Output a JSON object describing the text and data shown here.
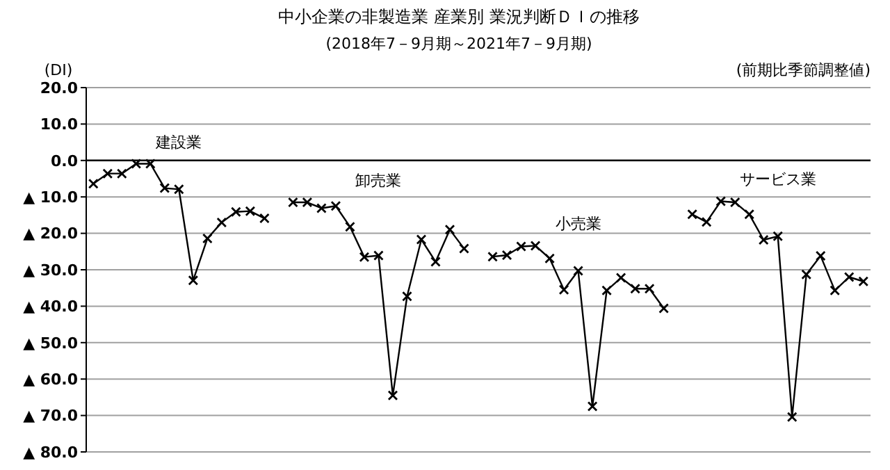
{
  "chart_data": {
    "type": "line",
    "title": "中小企業の非製造業 産業別 業況判断ＤＩの推移",
    "subtitle": "(2018年7－9月期～2021年7－9月期)",
    "ylabel": "(DI)",
    "annotations": [
      "(前期比季節調整値)"
    ],
    "categories": [
      null,
      null,
      null,
      null,
      null,
      null,
      null,
      null,
      null,
      null,
      null,
      null,
      null,
      null,
      null,
      null,
      null,
      null,
      null,
      null,
      null,
      null,
      null,
      null,
      null,
      null,
      null,
      null,
      null,
      null,
      null,
      null,
      null,
      null,
      null,
      null,
      null,
      null,
      null,
      null,
      null,
      null,
      null,
      null,
      null,
      null,
      null,
      null,
      null,
      null,
      null,
      null,
      null,
      null,
      null
    ],
    "series": [
      {
        "name": "建設業",
        "color": "#000000",
        "values": [
          -6.4,
          -3.6,
          -3.6,
          -0.9,
          -0.9,
          -7.6,
          -7.9,
          -32.9,
          -21.4,
          -17,
          -14.1,
          -13.9,
          -15.9,
          null,
          null,
          null,
          null,
          null,
          null,
          null,
          null,
          null,
          null,
          null,
          null,
          null,
          null,
          null,
          null,
          null,
          null,
          null,
          null,
          null,
          null,
          null,
          null,
          null,
          null,
          null,
          null,
          null,
          null,
          null,
          null,
          null,
          null,
          null,
          null,
          null,
          null,
          null,
          null,
          null,
          null
        ]
      },
      {
        "name": "卸売業",
        "color": "#000000",
        "values": [
          null,
          null,
          null,
          null,
          null,
          null,
          null,
          null,
          null,
          null,
          null,
          null,
          null,
          null,
          -11.5,
          -11.5,
          -13.1,
          -12.5,
          -18.2,
          -26.5,
          -26.1,
          -64.5,
          -37.3,
          -21.7,
          -27.8,
          -19,
          -24.2,
          null,
          null,
          null,
          null,
          null,
          null,
          null,
          null,
          null,
          null,
          null,
          null,
          null,
          null,
          null,
          null,
          null,
          null,
          null,
          null,
          null,
          null,
          null,
          null,
          null,
          null,
          null,
          null
        ]
      },
      {
        "name": "小売業",
        "color": "#000000",
        "values": [
          null,
          null,
          null,
          null,
          null,
          null,
          null,
          null,
          null,
          null,
          null,
          null,
          null,
          null,
          null,
          null,
          null,
          null,
          null,
          null,
          null,
          null,
          null,
          null,
          null,
          null,
          null,
          null,
          -26.4,
          -26,
          -23.6,
          -23.4,
          -26.9,
          -35.5,
          -30.3,
          -67.5,
          -35.7,
          -32.2,
          -35.2,
          -35.2,
          -40.6,
          null,
          null,
          null,
          null,
          null,
          null,
          null,
          null,
          null,
          null,
          null,
          null,
          null,
          null
        ]
      },
      {
        "name": "サービス業",
        "color": "#000000",
        "values": [
          null,
          null,
          null,
          null,
          null,
          null,
          null,
          null,
          null,
          null,
          null,
          null,
          null,
          null,
          null,
          null,
          null,
          null,
          null,
          null,
          null,
          null,
          null,
          null,
          null,
          null,
          null,
          null,
          null,
          null,
          null,
          null,
          null,
          null,
          null,
          null,
          null,
          null,
          null,
          null,
          null,
          null,
          -14.8,
          -16.9,
          -11.2,
          -11.5,
          -14.8,
          -21.8,
          -20.8,
          -70.4,
          -31.3,
          -26.2,
          -35.7,
          -32,
          -33.2
        ]
      }
    ],
    "ylim": [
      -80,
      20
    ],
    "yticks": [
      {
        "value": 20,
        "label": "20.0"
      },
      {
        "value": 10,
        "label": "10.0"
      },
      {
        "value": 0,
        "label": "0.0"
      },
      {
        "value": -10,
        "label": "▲ 10.0"
      },
      {
        "value": -20,
        "label": "▲ 20.0"
      },
      {
        "value": -30,
        "label": "▲ 30.0"
      },
      {
        "value": -40,
        "label": "▲ 40.0"
      },
      {
        "value": -50,
        "label": "▲ 50.0"
      },
      {
        "value": -60,
        "label": "▲ 60.0"
      },
      {
        "value": -70,
        "label": "▲ 70.0"
      },
      {
        "value": -80,
        "label": "▲ 80.0"
      }
    ],
    "ref_lines": [
      {
        "axis": "y",
        "value": 0,
        "color": "#000000"
      }
    ],
    "grid": "y",
    "marker": "cross",
    "line_style": "solid",
    "tick_labels": "y"
  }
}
